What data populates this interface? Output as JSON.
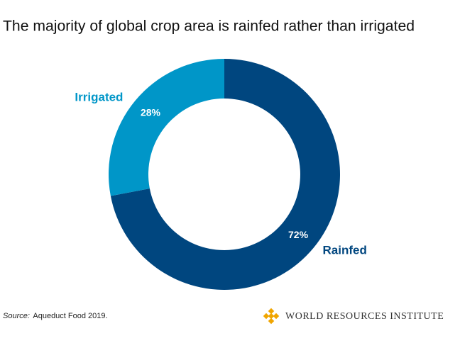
{
  "chart_data": {
    "type": "donut",
    "title": "The majority of global crop area is rainfed rather than irrigated",
    "categories": [
      "Rainfed",
      "Irrigated"
    ],
    "values": [
      72,
      28
    ],
    "value_labels": [
      "72%",
      "28%"
    ],
    "colors": [
      "#00467f",
      "#0096c8"
    ],
    "source_label": "Source:",
    "source": "Aqueduct Food 2019.",
    "logo": "WORLD RESOURCES INSTITUTE"
  }
}
